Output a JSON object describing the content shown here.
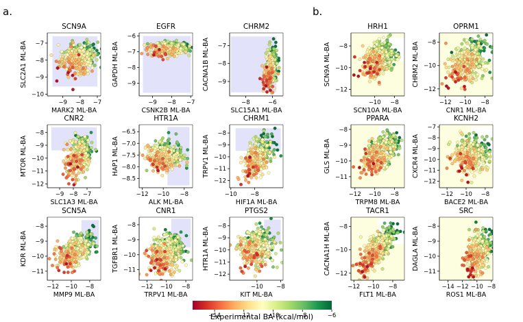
{
  "figure": {
    "panel_letters": [
      "a.",
      "b."
    ],
    "colorbar": {
      "label": "Experimental BA (kcal/mol)",
      "ticks": [
        "−14",
        "−12",
        "−10",
        "−8",
        "−6"
      ],
      "range": [
        -15.5,
        -6
      ],
      "colormap": [
        "#a50026",
        "#d73027",
        "#f46d43",
        "#fdae61",
        "#fee08b",
        "#ffffbf",
        "#d9ef8b",
        "#a6d96a",
        "#66bd63",
        "#1a9850",
        "#006837"
      ]
    },
    "colors": {
      "region_a": "#e2e2fb",
      "region_b": "#fdfde0"
    }
  },
  "chart_data": [
    {
      "type": "scatter",
      "panel": "a",
      "title": "SCN9A",
      "xlabel": "MARK2 ML-BA",
      "ylabel": "SLC2A1 ML-BA",
      "xlim": [
        -9.9,
        -6.8
      ],
      "ylim": [
        -10.1,
        -6.4
      ],
      "xticks": [
        -9,
        -8,
        -7
      ],
      "xtick_labels": [
        "−9",
        "−8",
        "−7"
      ],
      "yticks": [
        -10,
        -9,
        -8,
        -7
      ],
      "ytick_labels": [
        "−10",
        "−9",
        "−8",
        "−7"
      ],
      "region": [
        -9.6,
        -7.0,
        -9.55,
        -6.6
      ],
      "cloud": {
        "cx": -8.1,
        "cy": -7.9,
        "sx": 0.55,
        "sy": 0.45,
        "rho": 0.2,
        "n": 360
      }
    },
    {
      "type": "scatter",
      "panel": "a",
      "title": "EGFR",
      "xlabel": "CSNK2B ML-BA",
      "ylabel": "GAPDH ML-BA",
      "xlim": [
        -9.7,
        -6.9
      ],
      "ylim": [
        -9.8,
        -5.8
      ],
      "xticks": [
        -9,
        -8,
        -7
      ],
      "xtick_labels": [
        "−9",
        "−8",
        "−7"
      ],
      "yticks": [
        -9,
        -8,
        -7,
        -6
      ],
      "ytick_labels": [
        "−9",
        "−8",
        "−7",
        "−6"
      ],
      "region": [
        -9.5,
        -7.0,
        -9.6,
        -6.0
      ],
      "cloud": {
        "cx": -8.2,
        "cy": -6.8,
        "sx": 0.55,
        "sy": 0.22,
        "rho": 0.1,
        "n": 320
      }
    },
    {
      "type": "scatter",
      "panel": "a",
      "title": "CHRM2",
      "xlabel": "SLC15A1 ML-BA",
      "ylabel": "CACNA1B ML-BA",
      "xlim": [
        -9.2,
        -5.2
      ],
      "ylim": [
        -9.8,
        -6.3
      ],
      "xticks": [
        -8,
        -6
      ],
      "xtick_labels": [
        "−8",
        "−6"
      ],
      "yticks": [
        -9,
        -8,
        -7
      ],
      "ytick_labels": [
        "−9",
        "−8",
        "−7"
      ],
      "region": [
        -9.1,
        -5.7,
        -9.6,
        -6.5
      ],
      "cloud": {
        "cx": -6.1,
        "cy": -8.3,
        "sx": 0.22,
        "sy": 0.55,
        "rho": 0.3,
        "n": 320
      }
    },
    {
      "type": "scatter",
      "panel": "a",
      "title": "CNR2",
      "xlabel": "SLC1A3 ML-BA",
      "ylabel": "MTOR ML-BA",
      "xlim": [
        -9.9,
        -6.0
      ],
      "ylim": [
        -12.3,
        -7.4
      ],
      "xticks": [
        -9,
        -8,
        -7
      ],
      "xtick_labels": [
        "−9",
        "−8",
        "−7"
      ],
      "yticks": [
        -12,
        -11,
        -10,
        -9,
        -8
      ],
      "ytick_labels": [
        "−12",
        "−11",
        "−10",
        "−9",
        "−8"
      ],
      "region": [
        -9.6,
        -6.3,
        -9.4,
        -7.6
      ],
      "cloud": {
        "cx": -7.6,
        "cy": -9.9,
        "sx": 0.45,
        "sy": 0.75,
        "rho": 0.3,
        "n": 380
      }
    },
    {
      "type": "scatter",
      "panel": "a",
      "title": "HTR1A",
      "xlabel": "ALK ML-BA",
      "ylabel": "HAP1 ML-BA",
      "xlim": [
        -12.3,
        -7.2
      ],
      "ylim": [
        -8.9,
        -6.2
      ],
      "xticks": [
        -12,
        -10,
        -8
      ],
      "xtick_labels": [
        "−12",
        "−10",
        "−8"
      ],
      "yticks": [
        -8.5,
        -8.0,
        -7.5,
        -7.0,
        -6.5
      ],
      "ytick_labels": [
        "−8.5",
        "−8.0",
        "−7.5",
        "−7.0",
        "−6.5"
      ],
      "region": [
        -9.6,
        -7.5,
        -8.8,
        -6.3
      ],
      "cloud": {
        "cx": -9.8,
        "cy": -7.55,
        "sx": 0.85,
        "sy": 0.28,
        "rho": 0.1,
        "n": 380
      }
    },
    {
      "type": "scatter",
      "panel": "a",
      "title": "CHRM1",
      "xlabel": "HIF1A ML-BA",
      "ylabel": "TRPV1 ML-BA",
      "xlim": [
        -10.1,
        -5.6
      ],
      "ylim": [
        -12.6,
        -7.3
      ],
      "xticks": [
        -10,
        -8
      ],
      "xtick_labels": [
        "−10",
        "−8"
      ],
      "yticks": [
        -12,
        -11,
        -10,
        -9,
        -8
      ],
      "ytick_labels": [
        "−12",
        "−11",
        "−10",
        "−9",
        "−8"
      ],
      "region": [
        -9.6,
        -5.8,
        -9.5,
        -7.6
      ],
      "cloud": {
        "cx": -7.7,
        "cy": -10.0,
        "sx": 0.6,
        "sy": 0.8,
        "rho": 0.5,
        "n": 360
      }
    },
    {
      "type": "scatter",
      "panel": "a",
      "title": "SCN5A",
      "xlabel": "MMP9 ML-BA",
      "ylabel": "KDR ML-BA",
      "xlim": [
        -12.6,
        -6.8
      ],
      "ylim": [
        -11.6,
        -7.4
      ],
      "xticks": [
        -12,
        -10,
        -8
      ],
      "xtick_labels": [
        "−12",
        "−10",
        "−8"
      ],
      "yticks": [
        -11,
        -10,
        -9,
        -8
      ],
      "ytick_labels": [
        "−11",
        "−10",
        "−9",
        "−8"
      ],
      "region": [
        -8.9,
        -7.0,
        -9.3,
        -7.6
      ],
      "cloud": {
        "cx": -9.5,
        "cy": -9.6,
        "sx": 0.95,
        "sy": 0.55,
        "rho": 0.45,
        "n": 360
      }
    },
    {
      "type": "scatter",
      "panel": "a",
      "title": "CNR1",
      "xlabel": "TRPV1 ML-BA",
      "ylabel": "TGFBR1 ML-BA",
      "xlim": [
        -12.8,
        -7.3
      ],
      "ylim": [
        -11.7,
        -7.5
      ],
      "xticks": [
        -12,
        -10,
        -8
      ],
      "xtick_labels": [
        "−12",
        "−10",
        "−8"
      ],
      "yticks": [
        -11,
        -10,
        -9,
        -8
      ],
      "ytick_labels": [
        "−11",
        "−10",
        "−9",
        "−8"
      ],
      "region": [
        -9.5,
        -7.5,
        -9.5,
        -7.6
      ],
      "cloud": {
        "cx": -10.0,
        "cy": -9.9,
        "sx": 0.85,
        "sy": 0.65,
        "rho": 0.2,
        "n": 420
      }
    },
    {
      "type": "scatter",
      "panel": "a",
      "title": "PTGS2",
      "xlabel": "KIT ML-BA",
      "ylabel": "HTR1A ML-BA",
      "xlim": [
        -12.3,
        -7.8
      ],
      "ylim": [
        -12.5,
        -7.3
      ],
      "xticks": [
        -10,
        -8
      ],
      "xtick_labels": [
        "−10",
        "−8"
      ],
      "yticks": [
        -12,
        -11,
        -10,
        -9,
        -8
      ],
      "ytick_labels": [
        "−12",
        "−11",
        "−10",
        "−9",
        "−8"
      ],
      "region": [
        -9.4,
        -8.0,
        -9.4,
        -7.5
      ],
      "cloud": {
        "cx": -10.0,
        "cy": -9.8,
        "sx": 0.75,
        "sy": 0.8,
        "rho": 0.2,
        "n": 380
      }
    },
    {
      "type": "scatter",
      "panel": "b",
      "title": "HRH1",
      "xlabel": "SCN10A ML-BA",
      "ylabel": "SCN9A ML-BA",
      "xlim": [
        -12.4,
        -7.0
      ],
      "ylim": [
        -12.6,
        -6.8
      ],
      "xticks": [
        -10,
        -8
      ],
      "xtick_labels": [
        "−10",
        "−8"
      ],
      "yticks": [
        -12,
        -10,
        -8
      ],
      "ytick_labels": [
        "−12",
        "−10",
        "−8"
      ],
      "region": [
        -9.6,
        -7.2,
        -9.4,
        -7.2
      ],
      "cloud": {
        "cx": -9.6,
        "cy": -9.2,
        "sx": 0.8,
        "sy": 0.8,
        "rho": 0.3,
        "n": 360
      }
    },
    {
      "type": "scatter",
      "panel": "b",
      "title": "OPRM1",
      "xlabel": "CNR1 ML-BA",
      "ylabel": "CHRM2 ML-BA",
      "xlim": [
        -12.6,
        -7.2
      ],
      "ylim": [
        -12.6,
        -7.2
      ],
      "xticks": [
        -12,
        -10,
        -8
      ],
      "xtick_labels": [
        "−12",
        "−10",
        "−8"
      ],
      "yticks": [
        -12,
        -10,
        -8
      ],
      "ytick_labels": [
        "−12",
        "−10",
        "−8"
      ],
      "region": [
        -9.6,
        -7.4,
        -9.6,
        -7.4
      ],
      "cloud": {
        "cx": -9.7,
        "cy": -9.7,
        "sx": 0.95,
        "sy": 0.9,
        "rho": 0.45,
        "n": 420
      }
    },
    {
      "type": "scatter",
      "panel": "b",
      "title": "PPARA",
      "xlabel": "TRPM8 ML-BA",
      "ylabel": "GLS ML-BA",
      "xlim": [
        -12.4,
        -7.0
      ],
      "ylim": [
        -11.7,
        -7.7
      ],
      "xticks": [
        -12,
        -10,
        -8
      ],
      "xtick_labels": [
        "−12",
        "−10",
        "−8"
      ],
      "yticks": [
        -11,
        -10,
        -9,
        -8
      ],
      "ytick_labels": [
        "−11",
        "−10",
        "−9",
        "−8"
      ],
      "region": [
        -9.6,
        -7.2,
        -9.6,
        -7.8
      ],
      "cloud": {
        "cx": -9.5,
        "cy": -9.5,
        "sx": 0.9,
        "sy": 0.6,
        "rho": 0.55,
        "n": 360
      }
    },
    {
      "type": "scatter",
      "panel": "b",
      "title": "KCNH2",
      "xlabel": "BACE2 ML-BA",
      "ylabel": "CXCR4 ML-BA",
      "xlim": [
        -12.8,
        -7.2
      ],
      "ylim": [
        -12.6,
        -6.8
      ],
      "xticks": [
        -12,
        -10,
        -8
      ],
      "xtick_labels": [
        "−12",
        "−10",
        "−8"
      ],
      "yticks": [
        -12,
        -11,
        -10,
        -9,
        -8,
        -7
      ],
      "ytick_labels": [
        "−12",
        "−11",
        "−10",
        "−9",
        "−8",
        "−7"
      ],
      "region": [
        -9.5,
        -7.3,
        -9.5,
        -7.0
      ],
      "cloud": {
        "cx": -9.5,
        "cy": -9.6,
        "sx": 0.9,
        "sy": 0.75,
        "rho": 0.1,
        "n": 400
      }
    },
    {
      "type": "scatter",
      "panel": "b",
      "title": "TACR1",
      "xlabel": "FLT1 ML-BA",
      "ylabel": "CACNA1H ML-BA",
      "xlim": [
        -12.3,
        -6.8
      ],
      "ylim": [
        -12.6,
        -7.2
      ],
      "xticks": [
        -12,
        -10,
        -8
      ],
      "xtick_labels": [
        "−12",
        "−10",
        "−8"
      ],
      "yticks": [
        -12,
        -10,
        -8
      ],
      "ytick_labels": [
        "−12",
        "−10",
        "−8"
      ],
      "region": [
        -9.5,
        -7.0,
        -9.5,
        -7.3
      ],
      "cloud": {
        "cx": -9.6,
        "cy": -10.0,
        "sx": 0.85,
        "sy": 0.95,
        "rho": 0.7,
        "n": 420
      }
    },
    {
      "type": "scatter",
      "panel": "b",
      "title": "SRC",
      "xlabel": "ROS1 ML-BA",
      "ylabel": "DAGLA ML-BA",
      "xlim": [
        -15.2,
        -7.8
      ],
      "ylim": [
        -11.6,
        -7.4
      ],
      "xticks": [
        -14,
        -12,
        -10,
        -8
      ],
      "xtick_labels": [
        "−14",
        "−12",
        "−10",
        "−8"
      ],
      "yticks": [
        -11,
        -10,
        -9,
        -8
      ],
      "ytick_labels": [
        "−11",
        "−10",
        "−9",
        "−8"
      ],
      "region": [
        -9.5,
        -8.0,
        -9.5,
        -7.5
      ],
      "cloud": {
        "cx": -9.8,
        "cy": -9.8,
        "sx": 0.8,
        "sy": 0.7,
        "rho": 0.35,
        "n": 420
      }
    }
  ]
}
